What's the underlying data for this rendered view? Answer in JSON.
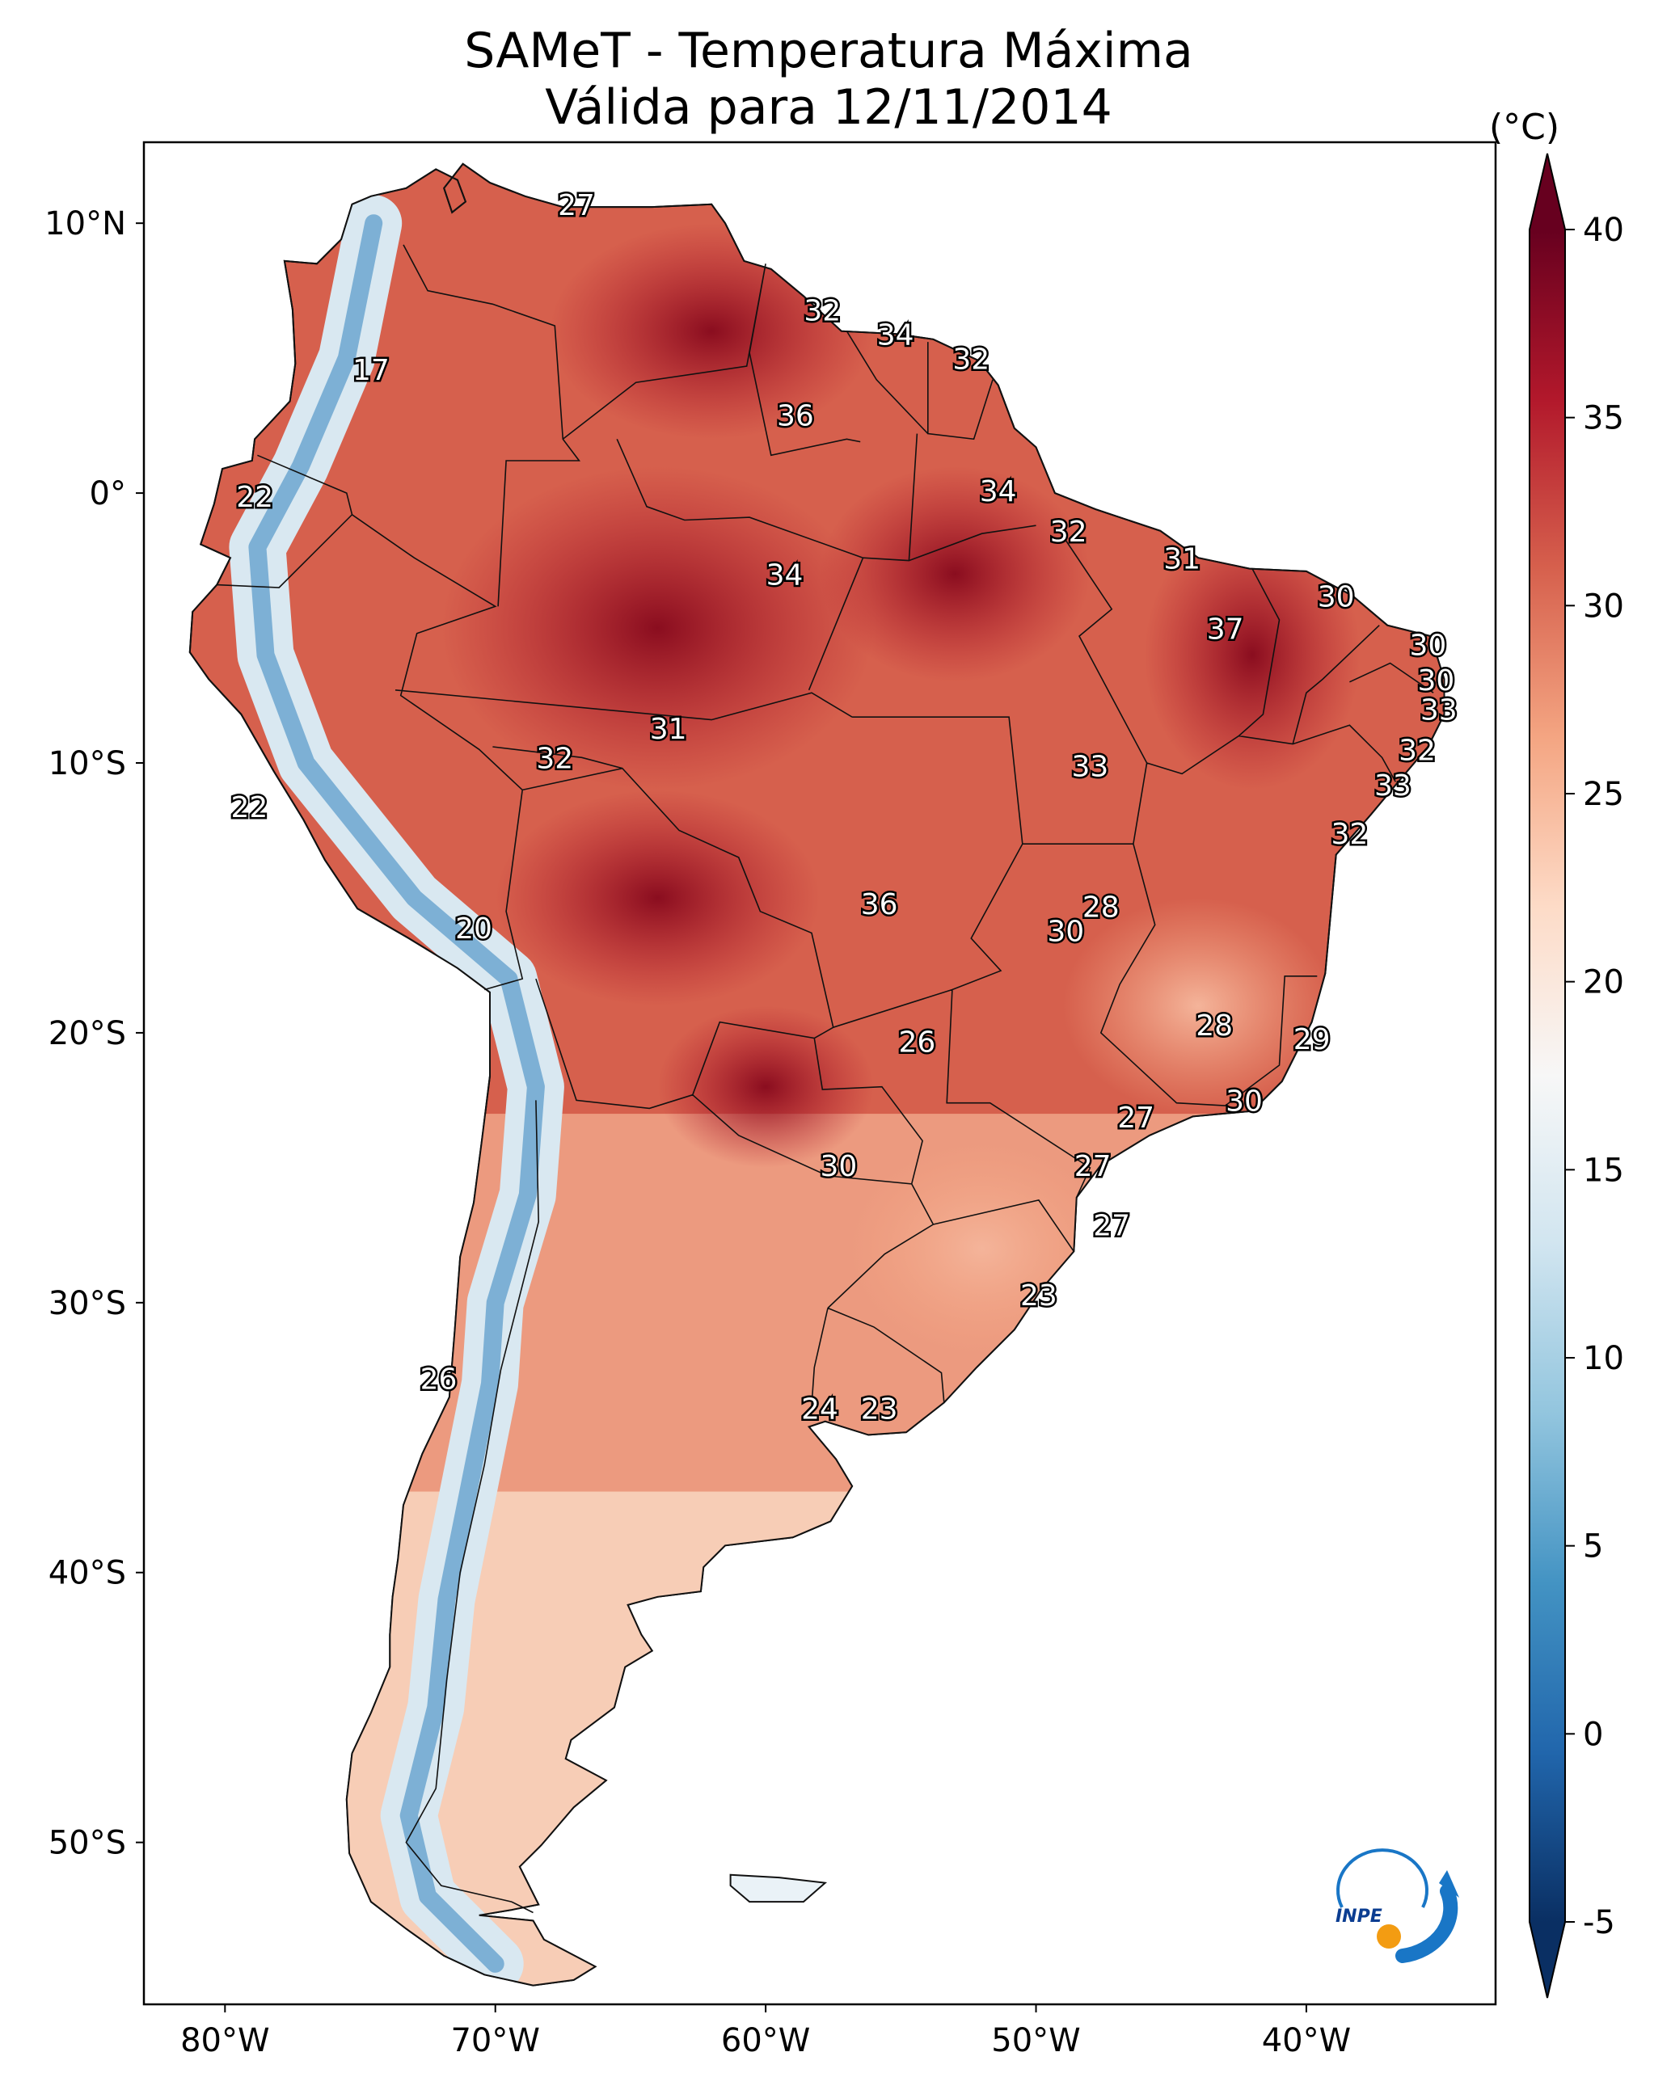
{
  "title": {
    "line1": "SAMeT - Temperatura Máxima",
    "line2": "Válida para 12/11/2014"
  },
  "colorbar": {
    "unit": "(°C)",
    "min": -5,
    "max": 40,
    "ticks": [
      -5,
      0,
      5,
      10,
      15,
      20,
      25,
      30,
      35,
      40
    ],
    "colors": [
      "#0a2f63",
      "#2166ac",
      "#4393c3",
      "#92c5de",
      "#d1e5f0",
      "#f7f7f7",
      "#fddbc7",
      "#f4a582",
      "#d6604d",
      "#b2182b",
      "#67001f"
    ]
  },
  "axes": {
    "lon_range": [
      -83,
      -33
    ],
    "lat_range": [
      -56,
      13
    ],
    "lon_ticks": [
      {
        "value": -80,
        "label": "80°W"
      },
      {
        "value": -70,
        "label": "70°W"
      },
      {
        "value": -60,
        "label": "60°W"
      },
      {
        "value": -50,
        "label": "50°W"
      },
      {
        "value": -40,
        "label": "40°W"
      }
    ],
    "lat_ticks": [
      {
        "value": 10,
        "label": "10°N"
      },
      {
        "value": 0,
        "label": "0°"
      },
      {
        "value": -10,
        "label": "10°S"
      },
      {
        "value": -20,
        "label": "20°S"
      },
      {
        "value": -30,
        "label": "30°S"
      },
      {
        "value": -40,
        "label": "40°S"
      },
      {
        "value": -50,
        "label": "50°S"
      }
    ]
  },
  "logo": {
    "text": "INPE",
    "icon": "inpe-logo-icon"
  },
  "temperature_labels": [
    {
      "lon": -67.0,
      "lat": 10.6,
      "value": "27"
    },
    {
      "lon": -74.6,
      "lat": 4.5,
      "value": "17"
    },
    {
      "lon": -57.9,
      "lat": 6.7,
      "value": "32"
    },
    {
      "lon": -55.2,
      "lat": 5.8,
      "value": "34"
    },
    {
      "lon": -52.4,
      "lat": 4.9,
      "value": "32"
    },
    {
      "lon": -58.9,
      "lat": 2.8,
      "value": "36"
    },
    {
      "lon": -51.4,
      "lat": 0.0,
      "value": "34"
    },
    {
      "lon": -78.9,
      "lat": -0.2,
      "value": "22"
    },
    {
      "lon": -48.8,
      "lat": -1.5,
      "value": "32"
    },
    {
      "lon": -44.6,
      "lat": -2.5,
      "value": "31"
    },
    {
      "lon": -38.9,
      "lat": -3.9,
      "value": "30"
    },
    {
      "lon": -59.3,
      "lat": -3.1,
      "value": "34"
    },
    {
      "lon": -43.0,
      "lat": -5.1,
      "value": "37"
    },
    {
      "lon": -35.5,
      "lat": -5.7,
      "value": "30"
    },
    {
      "lon": -35.2,
      "lat": -7.0,
      "value": "30"
    },
    {
      "lon": -35.1,
      "lat": -8.1,
      "value": "33"
    },
    {
      "lon": -35.9,
      "lat": -9.6,
      "value": "32"
    },
    {
      "lon": -36.8,
      "lat": -10.9,
      "value": "33"
    },
    {
      "lon": -63.6,
      "lat": -8.8,
      "value": "31"
    },
    {
      "lon": -67.8,
      "lat": -9.9,
      "value": "32"
    },
    {
      "lon": -48.0,
      "lat": -10.2,
      "value": "33"
    },
    {
      "lon": -79.1,
      "lat": -11.7,
      "value": "22"
    },
    {
      "lon": -38.4,
      "lat": -12.7,
      "value": "32"
    },
    {
      "lon": -55.8,
      "lat": -15.3,
      "value": "36"
    },
    {
      "lon": -47.6,
      "lat": -15.4,
      "value": "28"
    },
    {
      "lon": -48.9,
      "lat": -16.3,
      "value": "30"
    },
    {
      "lon": -70.8,
      "lat": -16.2,
      "value": "20"
    },
    {
      "lon": -54.4,
      "lat": -20.4,
      "value": "26"
    },
    {
      "lon": -43.4,
      "lat": -19.8,
      "value": "28"
    },
    {
      "lon": -39.8,
      "lat": -20.3,
      "value": "29"
    },
    {
      "lon": -42.3,
      "lat": -22.6,
      "value": "30"
    },
    {
      "lon": -46.3,
      "lat": -23.2,
      "value": "27"
    },
    {
      "lon": -57.3,
      "lat": -25.0,
      "value": "30"
    },
    {
      "lon": -47.9,
      "lat": -25.0,
      "value": "27"
    },
    {
      "lon": -47.2,
      "lat": -27.2,
      "value": "27"
    },
    {
      "lon": -49.9,
      "lat": -29.8,
      "value": "23"
    },
    {
      "lon": -72.1,
      "lat": -32.9,
      "value": "26"
    },
    {
      "lon": -58.0,
      "lat": -34.0,
      "value": "24"
    },
    {
      "lon": -55.8,
      "lat": -34.0,
      "value": "23"
    }
  ]
}
